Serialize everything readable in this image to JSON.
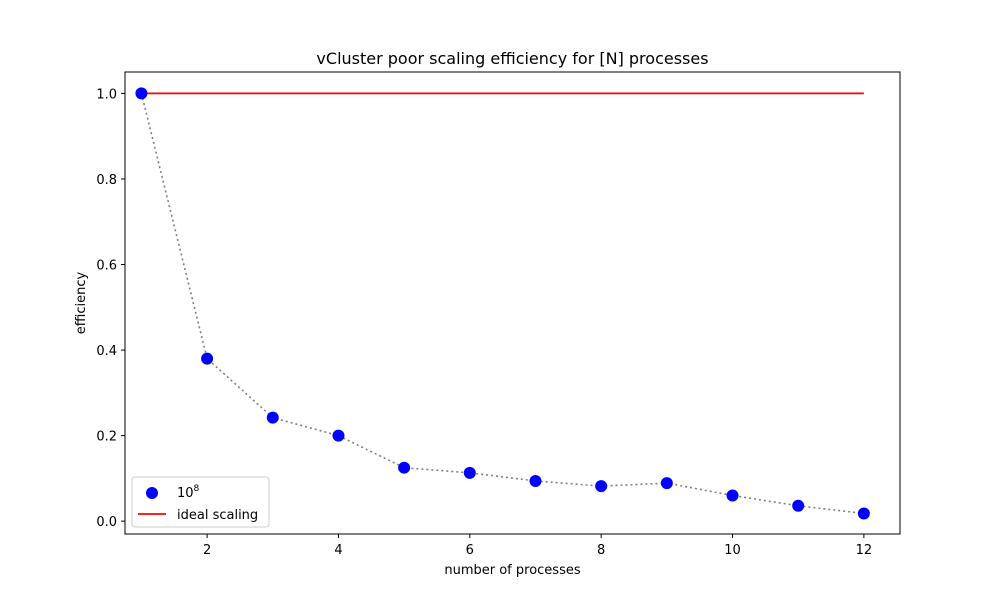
{
  "chart_data": {
    "type": "scatter",
    "title": "vCluster poor scaling efficiency for [N] processes",
    "xlabel": "number of processes",
    "ylabel": "efficiency",
    "xlim": [
      0.75,
      12.55
    ],
    "ylim": [
      -0.03,
      1.05
    ],
    "xticks": [
      2,
      4,
      6,
      8,
      10,
      12
    ],
    "xtick_labels": [
      "2",
      "4",
      "6",
      "8",
      "10",
      "12"
    ],
    "yticks": [
      0.0,
      0.2,
      0.4,
      0.6,
      0.8,
      1.0
    ],
    "ytick_labels": [
      "0.0",
      "0.2",
      "0.4",
      "0.6",
      "0.8",
      "1.0"
    ],
    "grid": false,
    "legend_position": "lower-left",
    "series": [
      {
        "name_base": "10",
        "name_exponent": "8",
        "kind": "scatter",
        "color": "#0000ff",
        "connector_color": "#808080",
        "x": [
          1,
          2,
          3,
          4,
          5,
          6,
          7,
          8,
          9,
          10,
          11,
          12
        ],
        "y": [
          1.0,
          0.38,
          0.242,
          0.2,
          0.125,
          0.113,
          0.094,
          0.082,
          0.089,
          0.06,
          0.036,
          0.018
        ]
      },
      {
        "name": "ideal scaling",
        "kind": "line",
        "color": "#ff0000",
        "x": [
          1,
          12
        ],
        "y": [
          1.0,
          1.0
        ]
      }
    ]
  }
}
